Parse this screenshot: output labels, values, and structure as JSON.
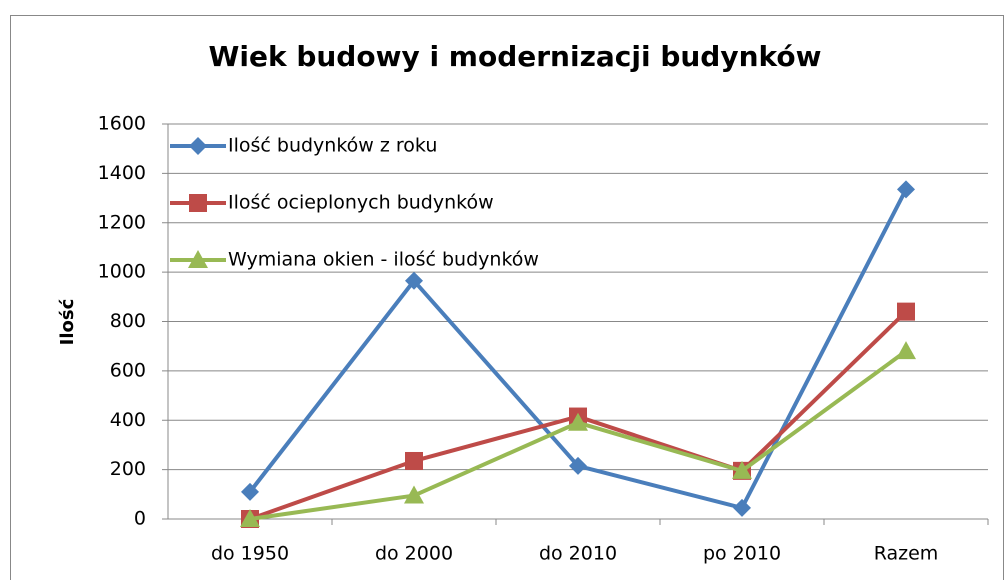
{
  "chart_data": {
    "type": "line",
    "title": "Wiek budowy i modernizacji budynków",
    "y_label": "Ilość",
    "categories": [
      "do 1950",
      "do 2000",
      "do 2010",
      "po 2010",
      "Razem"
    ],
    "series": [
      {
        "name": "Ilość budynków z roku",
        "color": "#4a7ebb",
        "marker": "diamond",
        "values": [
          110,
          965,
          215,
          45,
          1335
        ]
      },
      {
        "name": "Ilość ocieplonych budynków",
        "color": "#be4b48",
        "marker": "square",
        "values": [
          0,
          235,
          415,
          195,
          840
        ]
      },
      {
        "name": "Wymiana okien - ilość budynków",
        "color": "#98b954",
        "marker": "triangle",
        "values": [
          0,
          95,
          390,
          195,
          680
        ]
      }
    ],
    "ylim": [
      0,
      1600
    ],
    "yticks": [
      0,
      200,
      400,
      600,
      800,
      1000,
      1200,
      1400,
      1600
    ],
    "grid": true,
    "legend": "top-left"
  }
}
